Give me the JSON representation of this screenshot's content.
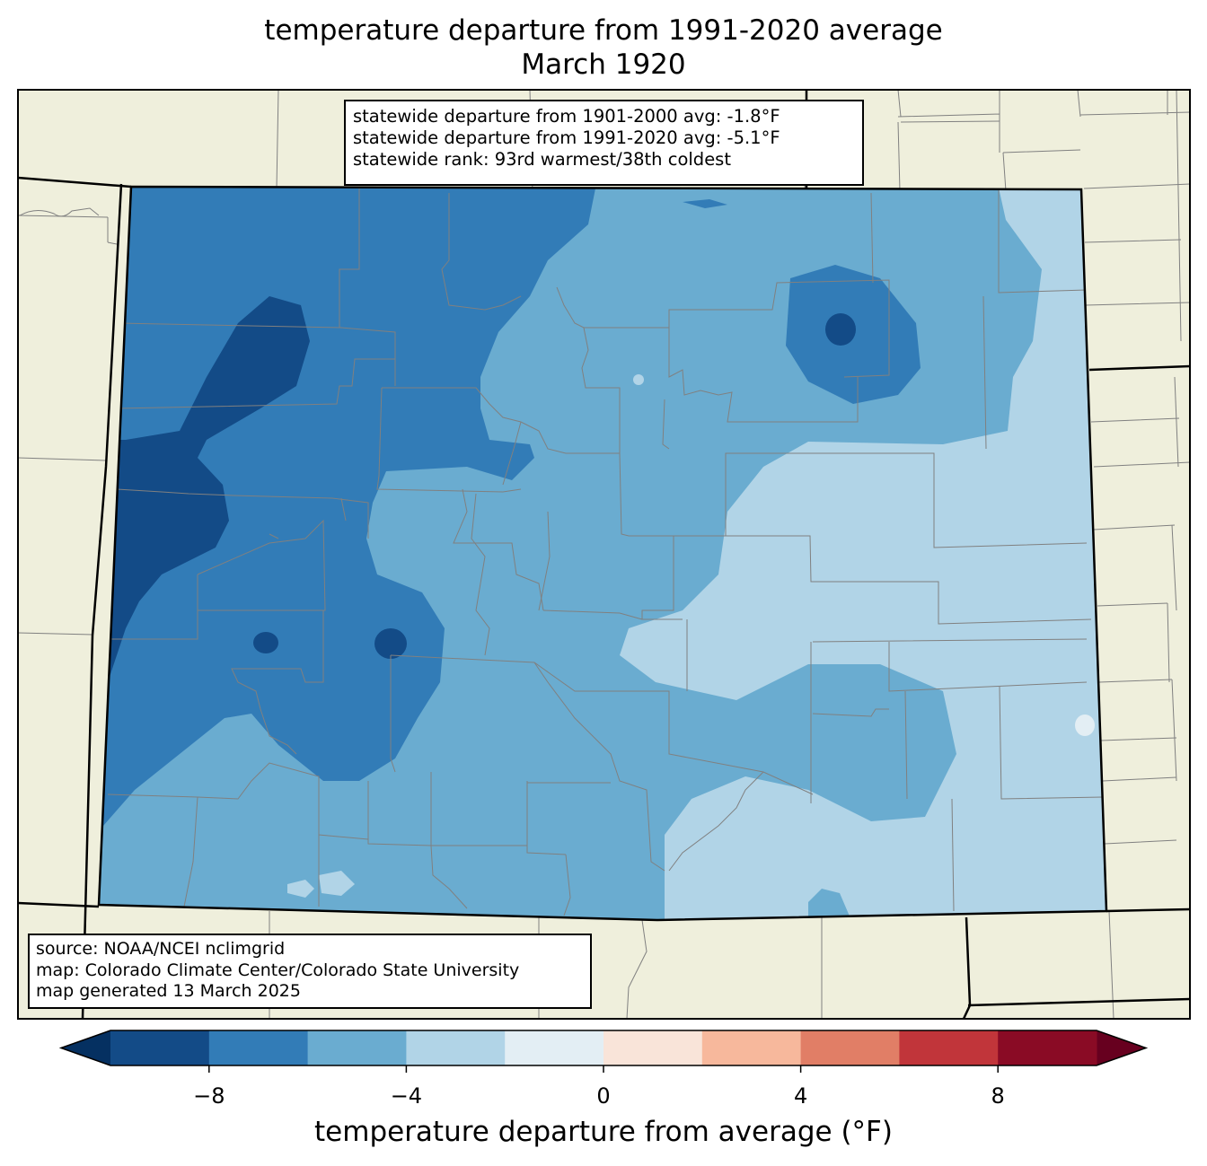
{
  "title": {
    "line1": "temperature departure from 1991-2020 average",
    "line2": "March 1920"
  },
  "stats": {
    "line1": "statewide departure from 1901-2000 avg: -1.8°F",
    "line2": "statewide departure from 1991-2020 avg: -5.1°F",
    "line3": "statewide rank: 93rd warmest/38th coldest"
  },
  "credits": {
    "source": "source: NOAA/NCEI nclimgrid",
    "map": "map: Colorado Climate Center/Colorado State University",
    "generated": "map generated 13 March 2025"
  },
  "colorbar": {
    "label": "temperature departure from average (°F)",
    "ticks": [
      "−8",
      "−4",
      "0",
      "4",
      "8"
    ],
    "tick_values": [
      -8,
      -4,
      0,
      4,
      8
    ],
    "bins": [
      {
        "min": -10,
        "max": -8,
        "color": "#134b87"
      },
      {
        "min": -8,
        "max": -6,
        "color": "#327cb7"
      },
      {
        "min": -6,
        "max": -4,
        "color": "#6aacd0"
      },
      {
        "min": -4,
        "max": -2,
        "color": "#b1d4e7"
      },
      {
        "min": -2,
        "max": 0,
        "color": "#e3eef4"
      },
      {
        "min": 0,
        "max": 2,
        "color": "#f9e4d9"
      },
      {
        "min": 2,
        "max": 4,
        "color": "#f7b89c"
      },
      {
        "min": 4,
        "max": 6,
        "color": "#e17e66"
      },
      {
        "min": 6,
        "max": 8,
        "color": "#c1353a"
      },
      {
        "min": 8,
        "max": 10,
        "color": "#8a0b25"
      }
    ],
    "under_color": "#053061",
    "over_color": "#67001f"
  },
  "map_colors": {
    "land": "#efefdc",
    "state_border": "#000000",
    "county_border": "#808080"
  }
}
